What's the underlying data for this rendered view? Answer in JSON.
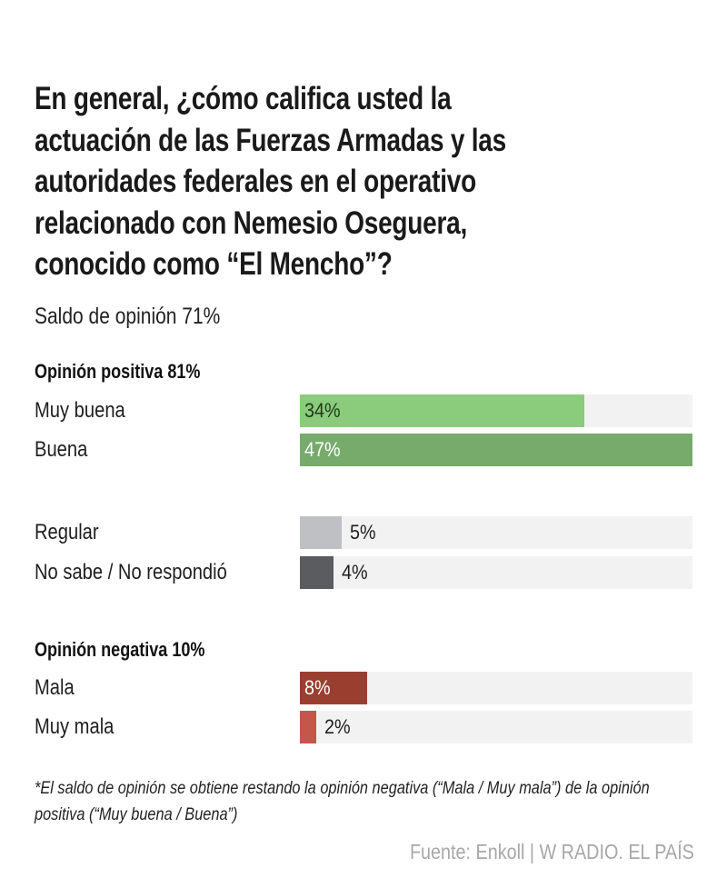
{
  "title_lines": [
    "En general, ¿cómo califica usted la",
    "actuación de las Fuerzas Armadas y las",
    "autoridades federales en el operativo",
    "relacionado con Nemesio Oseguera,",
    "conocido como “El Mencho”?"
  ],
  "subtitle": "Saldo de opinión 71%",
  "footnote": "*El saldo de opinión se obtiene restando la opinión negativa (“Mala / Muy mala”) de la opinión positiva (“Muy buena / Buena”)",
  "source": "Fuente: Enkoll | W RADIO. EL PAÍS",
  "chart_data": {
    "type": "bar",
    "orientation": "horizontal",
    "title": "En general, ¿cómo califica usted la actuación de las Fuerzas Armadas y las autoridades federales en el operativo relacionado con Nemesio Oseguera, conocido como “El Mencho”?",
    "subtitle": "Saldo de opinión 71%",
    "xlim": [
      0,
      47
    ],
    "unit": "%",
    "groups": [
      {
        "heading": "Opinión positiva 81%",
        "total": 81
      },
      {
        "heading": "",
        "total": null
      },
      {
        "heading": "Opinión negativa 10%",
        "total": 10
      }
    ],
    "categories": [
      "Muy buena",
      "Buena",
      "Regular",
      "No sabe / No respondió",
      "Mala",
      "Muy mala"
    ],
    "values": [
      34,
      47,
      5,
      4,
      8,
      2
    ],
    "labels": [
      "34%",
      "47%",
      "5%",
      "4%",
      "8%",
      "2%"
    ],
    "colors": [
      "#8acb7c",
      "#77ab6c",
      "#bfc0c4",
      "#5a5c5f",
      "#9a3f30",
      "#c4564a"
    ],
    "label_inside": [
      true,
      true,
      false,
      false,
      true,
      false
    ],
    "label_colors": [
      "#1f3a1a",
      "#ffffff",
      "#1f1f1f",
      "#1f1f1f",
      "#ffffff",
      "#1f1f1f"
    ],
    "track_color": "#f2f2f2"
  }
}
